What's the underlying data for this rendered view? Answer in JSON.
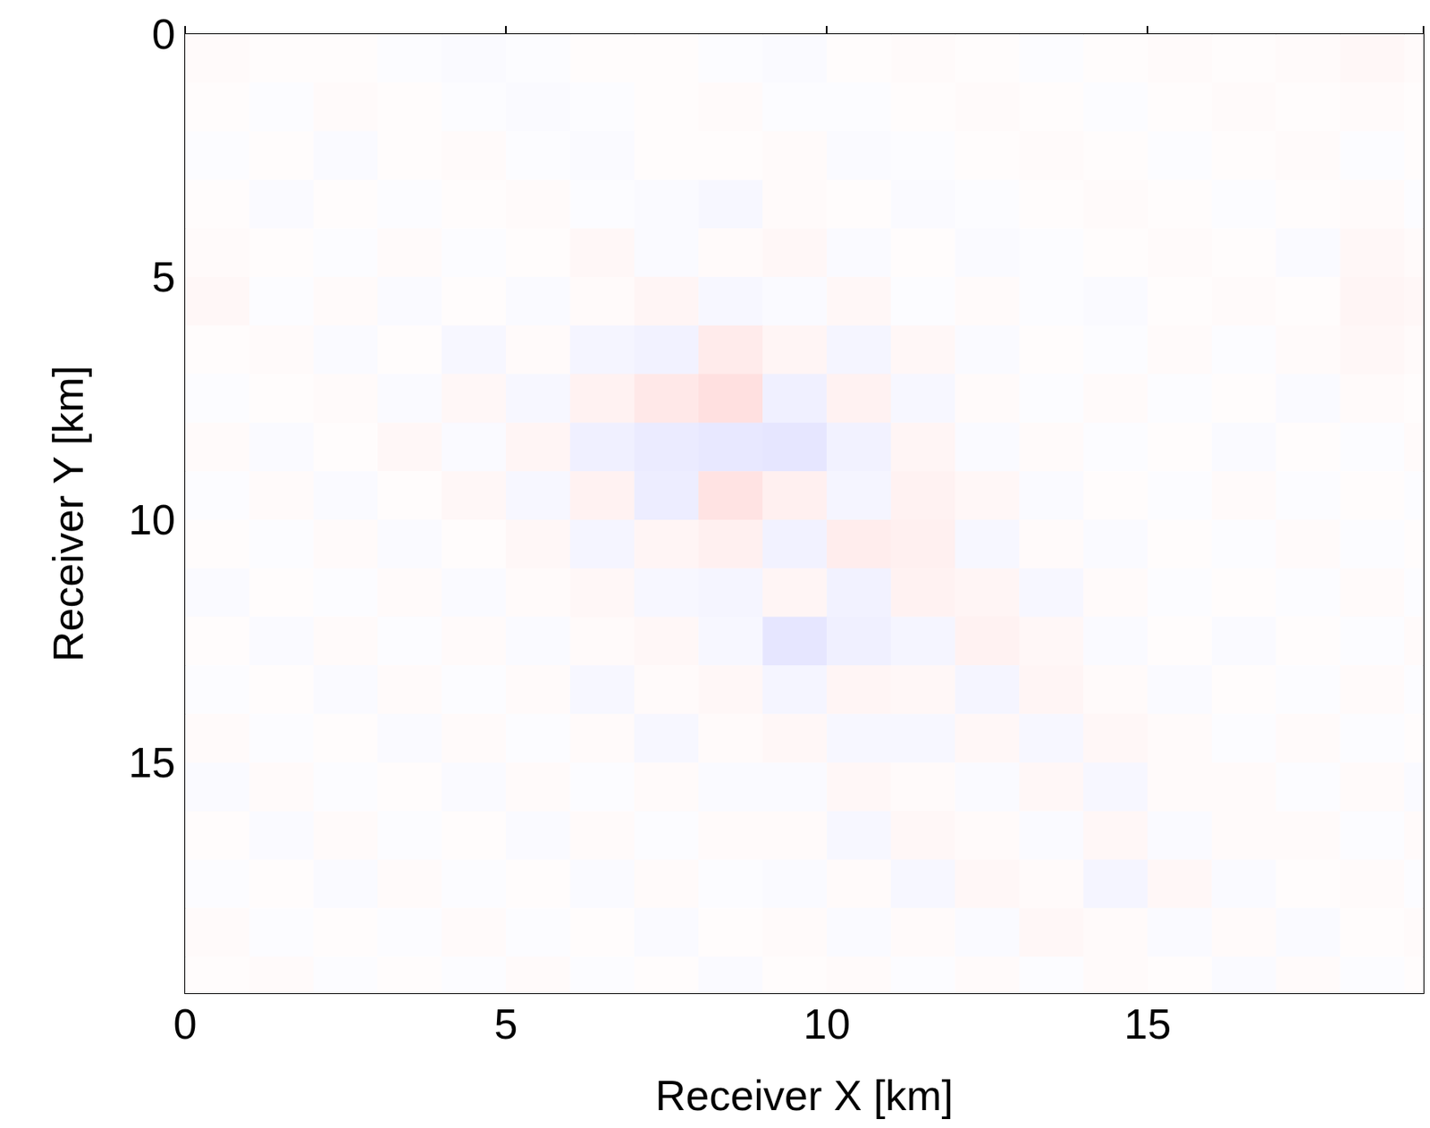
{
  "chart_data": {
    "type": "heatmap",
    "xlabel": "Receiver X [km]",
    "ylabel": "Receiver Y [km]",
    "xlim": [
      0,
      19.3
    ],
    "ylim": [
      19.75,
      0
    ],
    "xticks": [
      0,
      5,
      10,
      15
    ],
    "yticks": [
      0,
      5,
      10,
      15
    ],
    "x_edges": [
      0,
      1,
      2,
      3,
      4,
      5,
      6,
      7,
      8,
      9,
      10,
      11,
      12,
      13,
      14,
      15,
      16,
      17,
      18,
      19,
      19.3
    ],
    "y_edges": [
      0,
      1,
      2,
      3,
      4,
      5,
      6,
      7,
      8,
      9,
      10,
      11,
      12,
      13,
      14,
      15,
      16,
      17,
      18,
      19,
      19.75
    ],
    "zlim": [
      -1,
      1
    ],
    "z": [
      [
        0.02,
        0.01,
        0.01,
        -0.01,
        -0.02,
        -0.01,
        0.01,
        0.01,
        -0.01,
        -0.02,
        0.01,
        0.02,
        0.01,
        -0.01,
        0.01,
        0.02,
        0.01,
        0.02,
        0.03,
        0.02
      ],
      [
        0.01,
        -0.01,
        0.02,
        0.01,
        -0.01,
        -0.02,
        -0.01,
        0.01,
        0.02,
        -0.01,
        -0.01,
        0.01,
        0.02,
        0.01,
        -0.01,
        0.01,
        0.02,
        0.01,
        0.02,
        0.01
      ],
      [
        -0.01,
        0.01,
        -0.02,
        0.01,
        0.02,
        -0.01,
        -0.02,
        0.01,
        0.01,
        0.02,
        -0.02,
        -0.01,
        0.01,
        0.02,
        0.01,
        -0.01,
        0.01,
        0.02,
        -0.01,
        0.01
      ],
      [
        0.01,
        -0.02,
        0.01,
        -0.01,
        0.01,
        0.02,
        -0.01,
        -0.02,
        -0.03,
        0.02,
        0.01,
        -0.02,
        -0.01,
        0.01,
        0.02,
        0.01,
        -0.01,
        0.01,
        0.02,
        -0.01
      ],
      [
        0.02,
        0.01,
        -0.01,
        0.02,
        -0.01,
        0.01,
        0.03,
        -0.02,
        0.02,
        0.03,
        -0.02,
        0.01,
        -0.02,
        -0.01,
        0.01,
        0.02,
        0.01,
        -0.02,
        0.03,
        0.02
      ],
      [
        0.03,
        -0.01,
        0.02,
        -0.02,
        0.01,
        -0.02,
        0.02,
        0.04,
        -0.03,
        -0.02,
        0.03,
        -0.01,
        0.02,
        -0.01,
        -0.02,
        0.01,
        0.02,
        0.01,
        0.04,
        0.03
      ],
      [
        0.01,
        0.02,
        -0.02,
        0.01,
        -0.03,
        0.02,
        -0.04,
        -0.05,
        0.08,
        0.04,
        -0.04,
        0.03,
        -0.02,
        0.01,
        -0.01,
        0.02,
        -0.01,
        0.02,
        0.03,
        0.02
      ],
      [
        -0.01,
        0.01,
        0.02,
        -0.02,
        0.03,
        -0.03,
        0.05,
        0.09,
        0.12,
        -0.06,
        0.05,
        -0.03,
        0.02,
        -0.01,
        0.02,
        -0.01,
        0.01,
        -0.02,
        0.02,
        0.01
      ],
      [
        0.02,
        -0.02,
        0.01,
        0.03,
        -0.02,
        0.04,
        -0.06,
        -0.08,
        -0.09,
        -0.1,
        -0.05,
        0.04,
        -0.02,
        0.02,
        -0.01,
        0.01,
        -0.02,
        0.01,
        -0.01,
        0.02
      ],
      [
        -0.01,
        0.02,
        -0.02,
        0.01,
        0.03,
        -0.03,
        0.05,
        -0.07,
        0.11,
        0.06,
        -0.04,
        0.05,
        0.03,
        -0.02,
        0.01,
        -0.01,
        0.02,
        -0.01,
        0.01,
        -0.01
      ],
      [
        0.01,
        -0.01,
        0.02,
        -0.02,
        0.01,
        0.03,
        -0.04,
        0.04,
        0.06,
        -0.05,
        0.07,
        0.06,
        -0.03,
        0.02,
        -0.02,
        0.01,
        -0.01,
        0.02,
        -0.01,
        0.01
      ],
      [
        -0.02,
        0.01,
        -0.01,
        0.02,
        -0.02,
        0.02,
        0.03,
        -0.03,
        -0.04,
        0.04,
        -0.05,
        0.05,
        0.04,
        -0.03,
        0.02,
        -0.01,
        0.01,
        -0.01,
        0.02,
        -0.01
      ],
      [
        0.01,
        -0.02,
        0.02,
        -0.01,
        0.02,
        -0.02,
        0.02,
        0.03,
        -0.03,
        -0.1,
        -0.06,
        -0.04,
        0.05,
        0.03,
        -0.02,
        0.01,
        -0.02,
        0.01,
        -0.01,
        0.02
      ],
      [
        -0.01,
        0.01,
        -0.02,
        0.02,
        -0.01,
        0.02,
        -0.03,
        0.02,
        0.03,
        -0.04,
        0.04,
        0.03,
        -0.04,
        0.04,
        0.02,
        -0.02,
        0.01,
        -0.01,
        0.02,
        -0.01
      ],
      [
        0.02,
        -0.01,
        0.01,
        -0.02,
        0.02,
        -0.01,
        0.02,
        -0.03,
        0.02,
        0.03,
        -0.03,
        -0.03,
        0.03,
        -0.03,
        0.03,
        0.02,
        -0.01,
        0.02,
        -0.01,
        0.01
      ],
      [
        -0.02,
        0.02,
        -0.01,
        0.01,
        -0.02,
        0.02,
        -0.01,
        0.02,
        -0.02,
        -0.02,
        0.03,
        0.02,
        -0.02,
        0.03,
        -0.03,
        0.02,
        0.02,
        -0.01,
        0.02,
        -0.02
      ],
      [
        0.01,
        -0.02,
        0.02,
        -0.01,
        0.01,
        -0.02,
        0.02,
        -0.01,
        0.02,
        0.02,
        -0.03,
        0.03,
        0.02,
        -0.02,
        0.03,
        -0.02,
        0.02,
        0.02,
        -0.01,
        0.02
      ],
      [
        -0.01,
        0.01,
        -0.02,
        0.02,
        -0.01,
        0.01,
        -0.02,
        0.02,
        -0.01,
        -0.02,
        0.02,
        -0.03,
        0.03,
        0.02,
        -0.04,
        0.03,
        -0.02,
        0.01,
        0.02,
        -0.01
      ],
      [
        0.02,
        -0.01,
        0.01,
        -0.01,
        0.02,
        -0.01,
        0.01,
        -0.02,
        0.01,
        0.02,
        -0.02,
        0.02,
        -0.02,
        0.03,
        0.02,
        -0.02,
        0.02,
        -0.02,
        0.01,
        0.02
      ],
      [
        0.01,
        0.02,
        -0.01,
        0.01,
        -0.01,
        0.02,
        -0.01,
        0.01,
        -0.02,
        0.01,
        0.02,
        -0.01,
        0.02,
        -0.01,
        0.02,
        0.01,
        -0.02,
        0.02,
        -0.01,
        0.01
      ]
    ]
  }
}
